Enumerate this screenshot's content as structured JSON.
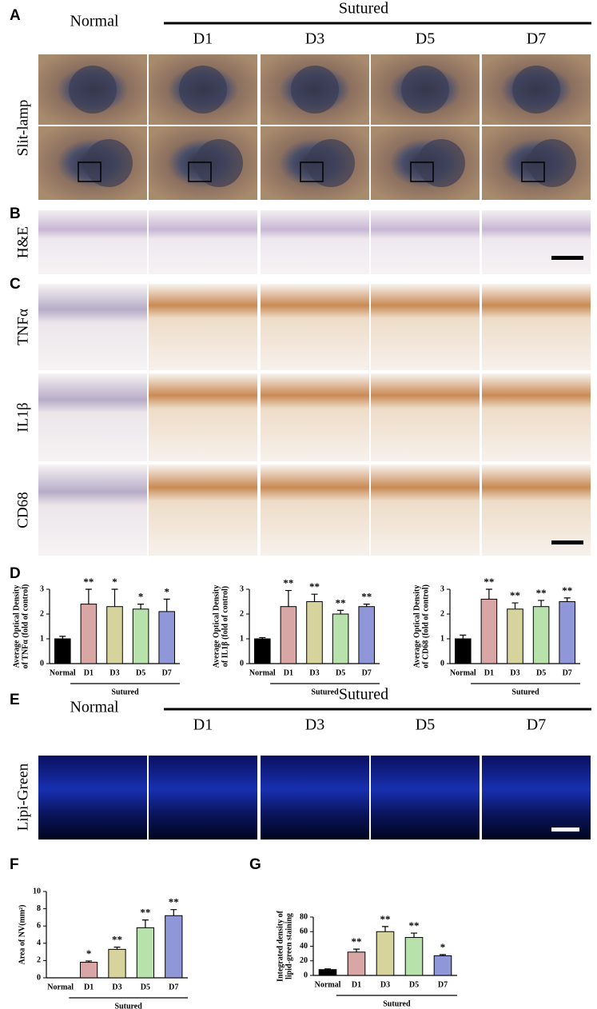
{
  "panel_labels": [
    "A",
    "B",
    "C",
    "D",
    "E",
    "F",
    "G"
  ],
  "panel_a": {
    "normal": "Normal",
    "group": "Sutured",
    "columns": [
      "D1",
      "D3",
      "D5",
      "D7"
    ],
    "row_label": "Slit-lamp"
  },
  "panel_b": {
    "row_label": "H&E"
  },
  "panel_c": {
    "row_labels": [
      "TNFα",
      "IL1β",
      "CD68"
    ]
  },
  "panel_e": {
    "normal": "Normal",
    "group": "Sutured",
    "columns": [
      "D1",
      "D3",
      "D5",
      "D7"
    ],
    "row_label": "Lipi-Green"
  },
  "chart_data": [
    {
      "type": "bar",
      "ylabel": [
        "Average Optical Density",
        "of TNFα (fold of control)"
      ],
      "categories": [
        "Normal",
        "D1",
        "D3",
        "D5",
        "D7"
      ],
      "group": "Sutured",
      "values": [
        1.0,
        2.4,
        2.3,
        2.2,
        2.1
      ],
      "errors": [
        0.1,
        0.6,
        0.7,
        0.2,
        0.5
      ],
      "annotations": [
        null,
        "**",
        "*",
        "*",
        "*"
      ],
      "colors": [
        "#000000",
        "#d9a6a6",
        "#d6d49c",
        "#b8e2ab",
        "#9097d8"
      ],
      "ylim": [
        0,
        3
      ],
      "yticks": [
        0,
        1,
        2,
        3
      ]
    },
    {
      "type": "bar",
      "ylabel": [
        "Average Optical Density",
        "of IL1β (fold of control)"
      ],
      "categories": [
        "Normal",
        "D1",
        "D3",
        "D5",
        "D7"
      ],
      "group": "Sutured",
      "values": [
        1.0,
        2.3,
        2.5,
        2.0,
        2.3
      ],
      "errors": [
        0.05,
        0.65,
        0.3,
        0.15,
        0.1
      ],
      "annotations": [
        null,
        "**",
        "**",
        "**",
        "**"
      ],
      "colors": [
        "#000000",
        "#d9a6a6",
        "#d6d49c",
        "#b8e2ab",
        "#9097d8"
      ],
      "ylim": [
        0,
        3
      ],
      "yticks": [
        0,
        1,
        2,
        3
      ]
    },
    {
      "type": "bar",
      "ylabel": [
        "Average Optical Density",
        "of CD68 (fold of control)"
      ],
      "categories": [
        "Normal",
        "D1",
        "D3",
        "D5",
        "D7"
      ],
      "group": "Sutured",
      "values": [
        1.0,
        2.6,
        2.2,
        2.3,
        2.5
      ],
      "errors": [
        0.15,
        0.4,
        0.25,
        0.25,
        0.15
      ],
      "annotations": [
        null,
        "**",
        "**",
        "**",
        "**"
      ],
      "colors": [
        "#000000",
        "#d9a6a6",
        "#d6d49c",
        "#b8e2ab",
        "#9097d8"
      ],
      "ylim": [
        0,
        3
      ],
      "yticks": [
        0,
        1,
        2,
        3
      ]
    },
    {
      "type": "bar",
      "ylabel": [
        "Area of NV(mm²)"
      ],
      "categories": [
        "Normal",
        "D1",
        "D3",
        "D5",
        "D7"
      ],
      "group": "Sutured",
      "values": [
        0,
        1.8,
        3.3,
        5.8,
        7.2
      ],
      "errors": [
        0,
        0.15,
        0.25,
        0.9,
        0.7
      ],
      "annotations": [
        null,
        "*",
        "**",
        "**",
        "**"
      ],
      "colors": [
        "#000000",
        "#d9a6a6",
        "#d6d49c",
        "#b8e2ab",
        "#9097d8"
      ],
      "ylim": [
        0,
        10
      ],
      "yticks": [
        0,
        2,
        4,
        6,
        8,
        10
      ]
    },
    {
      "type": "bar",
      "ylabel": [
        "Integrated density of",
        "lipid-green staining"
      ],
      "categories": [
        "Normal",
        "D1",
        "D3",
        "D5",
        "D7"
      ],
      "group": "Sutured",
      "values": [
        8,
        32,
        60,
        52,
        27
      ],
      "errors": [
        1,
        4,
        7,
        6,
        1.5
      ],
      "annotations": [
        null,
        "**",
        "**",
        "**",
        "*"
      ],
      "colors": [
        "#000000",
        "#d9a6a6",
        "#d6d49c",
        "#b8e2ab",
        "#9097d8"
      ],
      "ylim": [
        0,
        80
      ],
      "yticks": [
        0,
        20,
        40,
        60,
        80
      ]
    }
  ]
}
